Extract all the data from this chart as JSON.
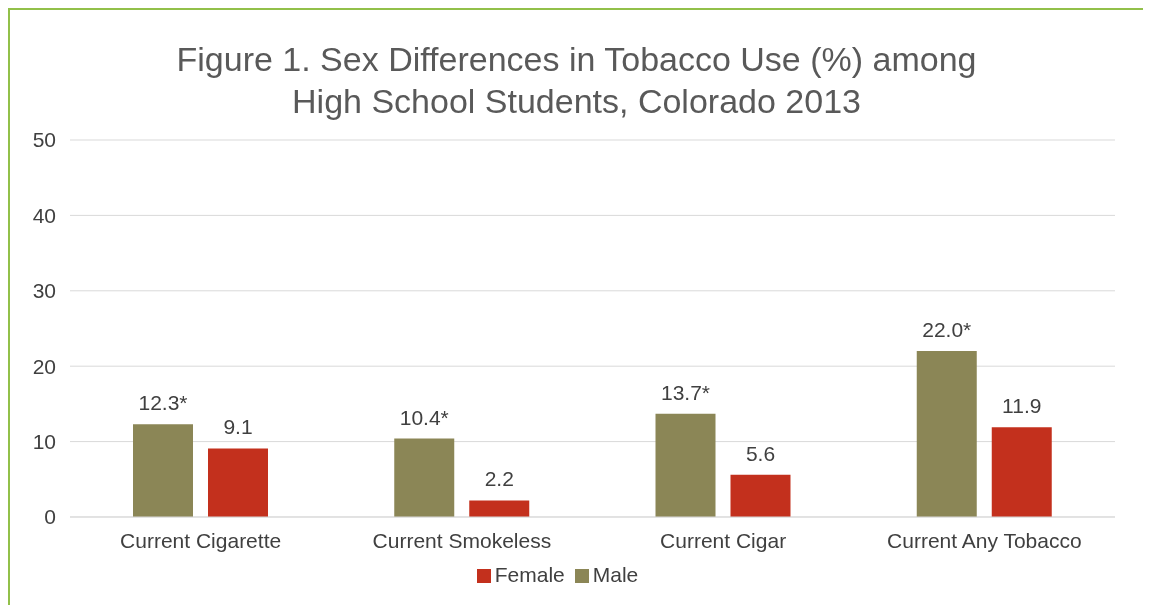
{
  "chart_data": {
    "type": "bar",
    "title": "Figure 1. Sex Differences in Tobacco Use (%) among High School Students, Colorado 2013",
    "categories": [
      "Current Cigarette",
      "Current Smokeless",
      "Current Cigar",
      "Current Any Tobacco"
    ],
    "series": [
      {
        "name": "Male",
        "color": "#8b8656",
        "values": [
          12.3,
          10.4,
          13.7,
          22.0
        ],
        "value_labels": [
          "12.3*",
          "10.4*",
          "13.7*",
          "22.0*"
        ]
      },
      {
        "name": "Female",
        "color": "#c3301d",
        "values": [
          9.1,
          2.2,
          5.6,
          11.9
        ],
        "value_labels": [
          "9.1",
          "2.2",
          "5.6",
          "11.9"
        ]
      }
    ],
    "ylim": [
      0,
      50
    ],
    "yticks": [
      0,
      10,
      20,
      30,
      40,
      50
    ],
    "grid": "y",
    "legend": "bottom"
  }
}
